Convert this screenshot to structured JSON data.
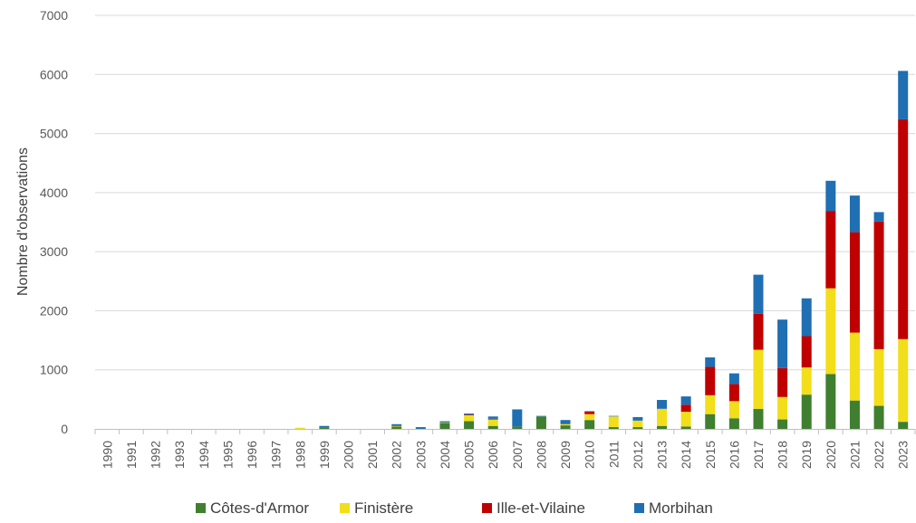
{
  "chart_data": {
    "type": "bar",
    "stacked": true,
    "title": "",
    "xlabel": "",
    "ylabel": "Nombre d'observations",
    "ylim": [
      0,
      7000
    ],
    "yticks": [
      0,
      1000,
      2000,
      3000,
      4000,
      5000,
      6000,
      7000
    ],
    "grid": true,
    "legend_position": "bottom",
    "categories": [
      "1990",
      "1991",
      "1992",
      "1993",
      "1994",
      "1995",
      "1996",
      "1997",
      "1998",
      "1999",
      "2000",
      "2001",
      "2002",
      "2003",
      "2004",
      "2005",
      "2006",
      "2007",
      "2008",
      "2009",
      "2010",
      "2011",
      "2012",
      "2013",
      "2014",
      "2015",
      "2016",
      "2017",
      "2018",
      "2019",
      "2020",
      "2021",
      "2022",
      "2023"
    ],
    "series": [
      {
        "name": "Côtes-d'Armor",
        "color": "#3f7f2f",
        "values": [
          0,
          0,
          0,
          0,
          0,
          0,
          0,
          0,
          0,
          20,
          0,
          0,
          40,
          0,
          100,
          130,
          50,
          40,
          210,
          60,
          150,
          30,
          30,
          50,
          40,
          250,
          180,
          340,
          160,
          580,
          930,
          480,
          390,
          120
        ]
      },
      {
        "name": "Finistère",
        "color": "#f2de1a",
        "values": [
          0,
          0,
          0,
          0,
          0,
          0,
          0,
          0,
          20,
          0,
          0,
          0,
          10,
          0,
          10,
          100,
          110,
          0,
          0,
          20,
          100,
          180,
          110,
          290,
          250,
          320,
          290,
          1000,
          380,
          460,
          1450,
          1150,
          960,
          1400
        ]
      },
      {
        "name": "Ille-et-Vilaine",
        "color": "#c00000",
        "values": [
          0,
          0,
          0,
          0,
          0,
          0,
          0,
          0,
          0,
          0,
          0,
          0,
          10,
          0,
          0,
          10,
          10,
          0,
          0,
          0,
          40,
          0,
          0,
          0,
          120,
          480,
          290,
          610,
          490,
          530,
          1310,
          1700,
          2160,
          3720
        ]
      },
      {
        "name": "Morbihan",
        "color": "#1f6fb2",
        "values": [
          0,
          0,
          0,
          0,
          0,
          0,
          0,
          0,
          0,
          30,
          0,
          0,
          20,
          30,
          20,
          20,
          40,
          290,
          10,
          70,
          10,
          10,
          60,
          150,
          140,
          160,
          180,
          660,
          820,
          640,
          510,
          620,
          160,
          820
        ]
      }
    ]
  }
}
